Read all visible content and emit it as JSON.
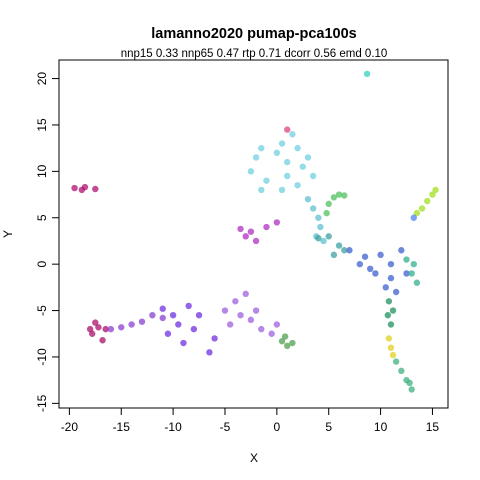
{
  "chart_data": {
    "type": "scatter",
    "title": "lamanno2020 pumap-pca100s",
    "subtitle": "nnp15 0.33 nnp65 0.47 rtp 0.71 dcorr 0.56 emd 0.10",
    "xlabel": "X",
    "ylabel": "Y",
    "xlim": [
      -21,
      16.5
    ],
    "ylim": [
      -15.5,
      22
    ],
    "xticks": [
      "-20",
      "-15",
      "-10",
      "-5",
      "0",
      "5",
      "10",
      "15"
    ],
    "yticks": [
      "-15",
      "-10",
      "-5",
      "0",
      "5",
      "10",
      "15",
      "20"
    ],
    "xtick_values": [
      -20,
      -15,
      -10,
      -5,
      0,
      5,
      10,
      15
    ],
    "ytick_values": [
      -15,
      -10,
      -5,
      0,
      5,
      10,
      15,
      20
    ],
    "grid": false,
    "legend": "none",
    "clusters": [
      {
        "color": "#b01070",
        "points": [
          [
            -19.5,
            8.2
          ],
          [
            -18.5,
            8.3
          ],
          [
            -17.5,
            8.1
          ],
          [
            -18.8,
            8.0
          ]
        ]
      },
      {
        "color": "#a8106a",
        "points": [
          [
            -17.8,
            -7.5
          ],
          [
            -17.2,
            -6.8
          ],
          [
            -16.8,
            -8.2
          ],
          [
            -17.5,
            -6.3
          ],
          [
            -16.5,
            -7.0
          ],
          [
            -18.0,
            -7.0
          ]
        ]
      },
      {
        "color": "#8a40d0",
        "points": [
          [
            -16.0,
            -7.0
          ],
          [
            -15.0,
            -6.8
          ],
          [
            -14.0,
            -6.5
          ],
          [
            -13.0,
            -6.2
          ],
          [
            -12.0,
            -5.5
          ],
          [
            -11.0,
            -5.8
          ]
        ]
      },
      {
        "color": "#7030e0",
        "points": [
          [
            -11.0,
            -4.8
          ],
          [
            -10.0,
            -5.5
          ],
          [
            -9.5,
            -6.5
          ],
          [
            -10.5,
            -7.5
          ],
          [
            -9.0,
            -8.5
          ],
          [
            -8.0,
            -7.0
          ],
          [
            -7.5,
            -5.5
          ],
          [
            -8.5,
            -4.5
          ],
          [
            -6.5,
            -9.5
          ],
          [
            -6.0,
            -8.0
          ]
        ]
      },
      {
        "color": "#a060e0",
        "points": [
          [
            -5.0,
            -5.0
          ],
          [
            -4.5,
            -6.5
          ],
          [
            -4.0,
            -4.0
          ],
          [
            -3.5,
            -5.5
          ],
          [
            -3.0,
            -3.2
          ],
          [
            -2.5,
            -6.0
          ],
          [
            -1.5,
            -7.0
          ],
          [
            -0.5,
            -7.5
          ],
          [
            0.0,
            -6.5
          ],
          [
            -2.0,
            -5.0
          ]
        ]
      },
      {
        "color": "#50a050",
        "points": [
          [
            0.5,
            -8.3
          ],
          [
            1.0,
            -8.8
          ],
          [
            1.5,
            -8.5
          ],
          [
            0.8,
            -7.8
          ]
        ]
      },
      {
        "color": "#b030c0",
        "points": [
          [
            -3.5,
            3.8
          ],
          [
            -3.0,
            3.0
          ],
          [
            -2.0,
            2.5
          ],
          [
            -1.0,
            4.0
          ],
          [
            0.0,
            4.5
          ],
          [
            -2.5,
            3.5
          ]
        ]
      },
      {
        "color": "#70d0e0",
        "points": [
          [
            -2.5,
            10.0
          ],
          [
            -2.0,
            11.5
          ],
          [
            -1.5,
            12.5
          ],
          [
            -1.0,
            9.0
          ],
          [
            0.0,
            12.0
          ],
          [
            0.5,
            13.0
          ],
          [
            1.0,
            11.0
          ],
          [
            1.5,
            14.0
          ],
          [
            2.0,
            12.5
          ],
          [
            2.5,
            10.5
          ],
          [
            3.0,
            11.5
          ],
          [
            1.0,
            9.5
          ],
          [
            0.5,
            8.0
          ],
          [
            2.0,
            8.5
          ],
          [
            3.5,
            9.5
          ],
          [
            -1.5,
            8.0
          ]
        ]
      },
      {
        "color": "#60c0d0",
        "points": [
          [
            3.0,
            7.0
          ],
          [
            3.5,
            6.0
          ],
          [
            4.0,
            5.0
          ],
          [
            4.2,
            4.0
          ],
          [
            4.5,
            2.5
          ],
          [
            3.8,
            3.0
          ]
        ]
      },
      {
        "color": "#50c060",
        "points": [
          [
            5.0,
            6.5
          ],
          [
            5.5,
            7.2
          ],
          [
            6.0,
            7.5
          ],
          [
            6.5,
            7.4
          ],
          [
            4.8,
            5.5
          ]
        ]
      },
      {
        "color": "#40a0a0",
        "points": [
          [
            4.0,
            2.8
          ],
          [
            5.0,
            3.0
          ],
          [
            6.0,
            2.0
          ],
          [
            6.5,
            1.5
          ],
          [
            5.5,
            1.0
          ]
        ]
      },
      {
        "color": "#4060d0",
        "points": [
          [
            7.0,
            1.5
          ],
          [
            8.0,
            0.0
          ],
          [
            9.0,
            -0.5
          ],
          [
            10.0,
            1.0
          ],
          [
            11.0,
            0.0
          ],
          [
            12.0,
            1.5
          ],
          [
            9.5,
            -1.0
          ],
          [
            10.5,
            -2.5
          ],
          [
            11.5,
            -3.0
          ],
          [
            12.5,
            -1.0
          ],
          [
            8.5,
            0.8
          ],
          [
            11.0,
            -1.5
          ]
        ]
      },
      {
        "color": "#30b090",
        "points": [
          [
            12.5,
            0.5
          ],
          [
            13.0,
            -1.0
          ],
          [
            13.5,
            -2.0
          ],
          [
            13.2,
            0.0
          ]
        ]
      },
      {
        "color": "#209060",
        "points": [
          [
            10.8,
            -4.0
          ],
          [
            10.7,
            -5.5
          ],
          [
            11.0,
            -6.5
          ],
          [
            11.2,
            -5.0
          ]
        ]
      },
      {
        "color": "#e0d020",
        "points": [
          [
            10.8,
            -8.0
          ],
          [
            11.0,
            -9.0
          ],
          [
            11.2,
            -9.8
          ]
        ]
      },
      {
        "color": "#40b080",
        "points": [
          [
            11.5,
            -10.5
          ],
          [
            12.0,
            -11.5
          ],
          [
            12.5,
            -12.5
          ],
          [
            13.0,
            -13.5
          ],
          [
            12.8,
            -12.8
          ]
        ]
      },
      {
        "color": "#a0e020",
        "points": [
          [
            13.5,
            5.5
          ],
          [
            14.0,
            6.0
          ],
          [
            14.5,
            6.8
          ],
          [
            15.0,
            7.5
          ],
          [
            15.3,
            8.0
          ]
        ]
      },
      {
        "color": "#5080f0",
        "points": [
          [
            13.2,
            5.0
          ]
        ]
      },
      {
        "color": "#30d0c0",
        "points": [
          [
            8.7,
            20.5
          ]
        ]
      },
      {
        "color": "#e04080",
        "points": [
          [
            1.0,
            14.5
          ]
        ]
      }
    ]
  }
}
